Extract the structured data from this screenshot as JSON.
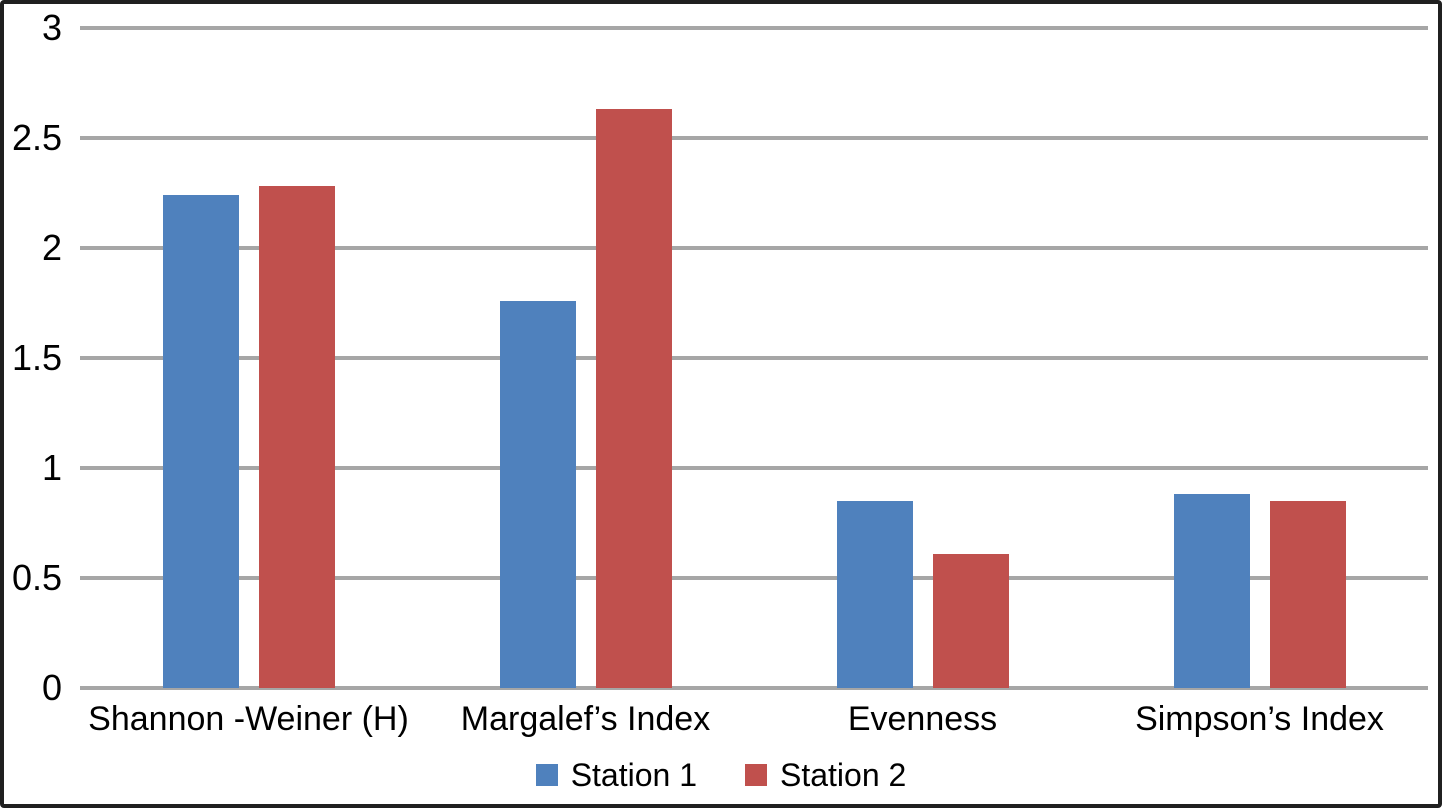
{
  "chart_data": {
    "type": "bar",
    "title": "",
    "xlabel": "",
    "ylabel": "",
    "categories": [
      "Shannon -Weiner (H)",
      "Margalef’s Index",
      "Evenness",
      "Simpson’s Index"
    ],
    "series": [
      {
        "name": "Station 1",
        "color": "#4F81BD",
        "values": [
          2.24,
          1.76,
          0.85,
          0.88
        ]
      },
      {
        "name": "Station 2",
        "color": "#C0504D",
        "values": [
          2.28,
          2.63,
          0.61,
          0.85
        ]
      }
    ],
    "ylim": [
      0,
      3
    ],
    "yticks": [
      0,
      0.5,
      1,
      1.5,
      2,
      2.5,
      3
    ],
    "ytick_labels": [
      "0",
      "0.5",
      "1",
      "1.5",
      "2",
      "2.5",
      "3"
    ],
    "grid": "horizontal",
    "gridline_color": "#A6A6A6",
    "legend_position": "bottom"
  },
  "frame": {
    "border_color": "#202020",
    "background": "#FFFFFF"
  }
}
